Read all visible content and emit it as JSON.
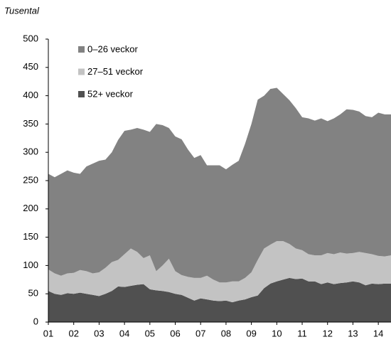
{
  "chart_data": {
    "type": "stacked_area",
    "y_axis_label": "Tusental",
    "categories": [
      "01",
      null,
      null,
      null,
      "02",
      null,
      null,
      null,
      "03",
      null,
      null,
      null,
      "04",
      null,
      null,
      null,
      "05",
      null,
      null,
      null,
      "06",
      null,
      null,
      null,
      "07",
      null,
      null,
      null,
      "08",
      null,
      null,
      null,
      "09",
      null,
      null,
      null,
      "10",
      null,
      null,
      null,
      "11",
      null,
      null,
      null,
      "12",
      null,
      null,
      null,
      "13",
      null,
      null,
      null,
      "14",
      null,
      null
    ],
    "series": [
      {
        "name": "0–26 veckor",
        "color": "#828282",
        "values": [
          169,
          170,
          180,
          182,
          177,
          170,
          185,
          194,
          197,
          191,
          194,
          212,
          218,
          210,
          219,
          227,
          218,
          260,
          248,
          231,
          238,
          240,
          225,
          212,
          217,
          195,
          202,
          207,
          200,
          206,
          213,
          237,
          262,
          283,
          270,
          275,
          271,
          260,
          254,
          248,
          235,
          240,
          238,
          242,
          233,
          240,
          244,
          255,
          253,
          248,
          242,
          242,
          253,
          251,
          249
        ]
      },
      {
        "name": "27–51 veckor",
        "color": "#c3c3c3",
        "values": [
          38,
          36,
          34,
          35,
          37,
          40,
          40,
          38,
          42,
          46,
          51,
          47,
          58,
          66,
          58,
          46,
          60,
          34,
          45,
          59,
          40,
          35,
          37,
          40,
          36,
          42,
          37,
          33,
          32,
          37,
          34,
          38,
          44,
          63,
          70,
          69,
          71,
          68,
          60,
          54,
          50,
          48,
          46,
          51,
          52,
          53,
          54,
          51,
          50,
          54,
          57,
          52,
          50,
          48,
          50
        ]
      },
      {
        "name": "52+ veckor",
        "color": "#505050",
        "values": [
          55,
          50,
          48,
          51,
          50,
          52,
          50,
          48,
          46,
          50,
          55,
          63,
          62,
          64,
          66,
          67,
          58,
          56,
          55,
          53,
          50,
          48,
          43,
          38,
          42,
          40,
          38,
          37,
          38,
          35,
          38,
          40,
          44,
          47,
          60,
          68,
          72,
          75,
          78,
          76,
          77,
          72,
          72,
          67,
          70,
          67,
          69,
          70,
          72,
          70,
          65,
          68,
          67,
          68,
          68
        ]
      }
    ],
    "ylim": [
      0,
      500
    ],
    "yticks": [
      0,
      50,
      100,
      150,
      200,
      250,
      300,
      350,
      400,
      450,
      500
    ],
    "legend": "top-left"
  }
}
